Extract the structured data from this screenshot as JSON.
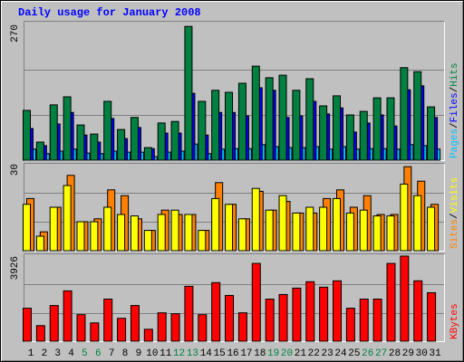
{
  "chart_data": [
    {
      "type": "bar",
      "title": "Daily usage for January 2008",
      "categories": [
        "1",
        "2",
        "3",
        "4",
        "5",
        "6",
        "7",
        "8",
        "9",
        "10",
        "11",
        "12",
        "13",
        "14",
        "15",
        "16",
        "17",
        "18",
        "19",
        "20",
        "21",
        "22",
        "23",
        "24",
        "25",
        "26",
        "27",
        "28",
        "29",
        "30",
        "31"
      ],
      "category_colors": [
        "#000000",
        "#000000",
        "#000000",
        "#000000",
        "#008040",
        "#008040",
        "#000000",
        "#000000",
        "#000000",
        "#000000",
        "#000000",
        "#008040",
        "#008040",
        "#000000",
        "#000000",
        "#000000",
        "#000000",
        "#000000",
        "#008040",
        "#008040",
        "#000000",
        "#000000",
        "#000000",
        "#000000",
        "#000000",
        "#008040",
        "#008040",
        "#000000",
        "#000000",
        "#000000",
        "#000000"
      ],
      "legend_separator": "/",
      "series": [
        {
          "name": "Pages",
          "color": "#00C0FF",
          "values": [
            22,
            13,
            18,
            22,
            14,
            13,
            18,
            16,
            16,
            7,
            16,
            18,
            32,
            13,
            22,
            23,
            23,
            31,
            27,
            25,
            25,
            27,
            22,
            27,
            22,
            23,
            23,
            22,
            31,
            29,
            22
          ]
        },
        {
          "name": "Files",
          "color": "#0000FF",
          "values": [
            63,
            29,
            72,
            95,
            50,
            36,
            83,
            43,
            65,
            23,
            54,
            54,
            133,
            50,
            95,
            95,
            88,
            144,
            139,
            85,
            88,
            117,
            92,
            104,
            56,
            74,
            90,
            68,
            140,
            148,
            85
          ]
        },
        {
          "name": "Hits",
          "color": "#008040",
          "values": [
            99,
            36,
            110,
            126,
            70,
            52,
            117,
            61,
            85,
            25,
            74,
            77,
            266,
            117,
            139,
            135,
            153,
            187,
            164,
            169,
            139,
            162,
            108,
            128,
            90,
            97,
            124,
            124,
            184,
            176,
            106
          ]
        }
      ],
      "ylim": [
        0,
        270
      ],
      "yticks": [
        270
      ],
      "ygrid": [
        90,
        180
      ]
    },
    {
      "type": "bar",
      "legend_separator": "/",
      "series": [
        {
          "name": "Sites",
          "color": "#FF8000",
          "values": [
            18,
            6.5,
            15,
            26,
            10,
            11,
            21,
            19,
            11,
            7,
            14,
            12.5,
            12.5,
            7,
            23.5,
            16,
            11,
            20.5,
            14,
            17,
            13,
            13,
            18,
            21,
            15,
            19,
            12.5,
            12.5,
            29,
            24,
            16
          ]
        },
        {
          "name": "Visits",
          "color": "#FFFF00",
          "values": [
            16,
            5,
            15,
            22.5,
            10,
            10,
            15,
            12.5,
            12,
            7,
            12.5,
            14,
            12.5,
            7,
            18,
            16,
            11,
            21.5,
            14,
            19,
            13,
            15,
            15,
            18,
            13,
            14,
            12,
            12,
            23,
            19,
            15
          ]
        }
      ],
      "ylim": [
        0,
        30
      ],
      "yticks": [
        30
      ],
      "ygrid": [
        10,
        20
      ]
    },
    {
      "type": "bar",
      "series": [
        {
          "name": "KBytes",
          "color": "#FF0000",
          "values": [
            1520,
            718,
            1646,
            2322,
            1224,
            844,
            1942,
            1055,
            1646,
            549,
            1309,
            1266,
            2533,
            1224,
            2702,
            2111,
            1309,
            3588,
            1942,
            2153,
            2449,
            2744,
            2491,
            2786,
            1520,
            1942,
            1942,
            3588,
            3926,
            2786,
            2237
          ]
        }
      ],
      "ylim": [
        0,
        3926
      ],
      "yticks": [
        3926
      ],
      "ygrid": [
        1309,
        2617
      ]
    }
  ]
}
